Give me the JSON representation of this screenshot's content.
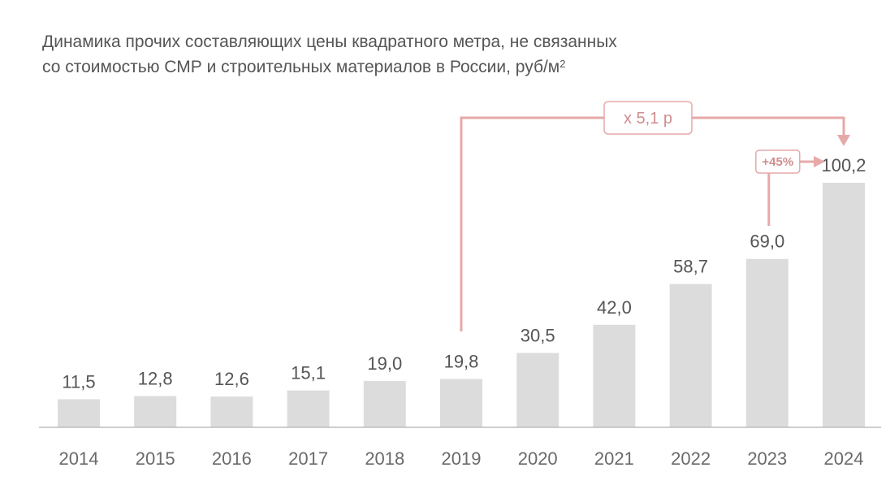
{
  "title_line1": "Динамика прочих составляющих цены квадратного метра, не связанных",
  "title_line2": "со стоимостью СМР и строительных материалов в России, руб/м",
  "title_sup": "2",
  "chart_data": {
    "type": "bar",
    "categories": [
      "2014",
      "2015",
      "2016",
      "2017",
      "2018",
      "2019",
      "2020",
      "2021",
      "2022",
      "2023",
      "2024"
    ],
    "values": [
      11.5,
      12.8,
      12.6,
      15.1,
      19.0,
      19.8,
      30.5,
      42.0,
      58.7,
      69.0,
      100.2
    ],
    "value_labels": [
      "11,5",
      "12,8",
      "12,6",
      "15,1",
      "19,0",
      "19,8",
      "30,5",
      "42,0",
      "58,7",
      "69,0",
      "100,2"
    ],
    "ylim": [
      0,
      100.2
    ],
    "grid": false,
    "bar_color": "#dcdcdc",
    "annotations": [
      {
        "text": "x 5,1 р",
        "from": "2019",
        "to": "2024"
      },
      {
        "text": "+45%",
        "from": "2023",
        "to": "2024"
      }
    ],
    "annotation_color": "#e6a9aa"
  }
}
